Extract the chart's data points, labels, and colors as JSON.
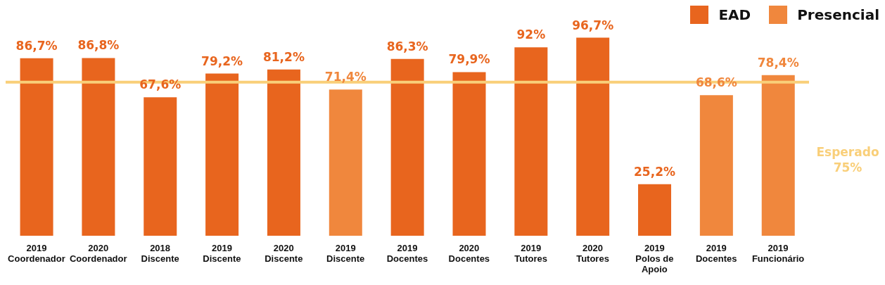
{
  "chart_data": {
    "type": "bar",
    "categories": [
      "2019\nCoordenador",
      "2020\nCoordenador",
      "2018\nDiscente",
      "2019\nDiscente",
      "2020\nDiscente",
      "2019\nDiscente",
      "2019\nDocentes",
      "2020\nDocentes",
      "2019\nTutores",
      "2020\nTutores",
      "2019\nPolos de\nApoio",
      "2019\nDocentes",
      "2019\nFuncionário"
    ],
    "series": [
      {
        "name": "EAD",
        "color": "#e8651e",
        "values": [
          86.7,
          86.8,
          67.6,
          79.2,
          81.2,
          null,
          86.3,
          79.9,
          92,
          96.7,
          25.2,
          null,
          null
        ],
        "value_labels": [
          "86,7%",
          "86,8%",
          "67,6%",
          "79,2%",
          "81,2%",
          null,
          "86,3%",
          "79,9%",
          "92%",
          "96,7%",
          "25,2%",
          null,
          null
        ]
      },
      {
        "name": "Presencial",
        "color": "#f0873d",
        "values": [
          null,
          null,
          null,
          null,
          null,
          71.4,
          null,
          null,
          null,
          null,
          null,
          68.6,
          78.4
        ],
        "value_labels": [
          null,
          null,
          null,
          null,
          null,
          "71,4%",
          null,
          null,
          null,
          null,
          null,
          "68,6%",
          "78,4%"
        ]
      }
    ],
    "stacked": true,
    "legend": "top right",
    "ref_lines": [
      {
        "axis": "y",
        "value": 75,
        "label": "Esperado\n75%",
        "color": "#f9cf79"
      }
    ]
  }
}
